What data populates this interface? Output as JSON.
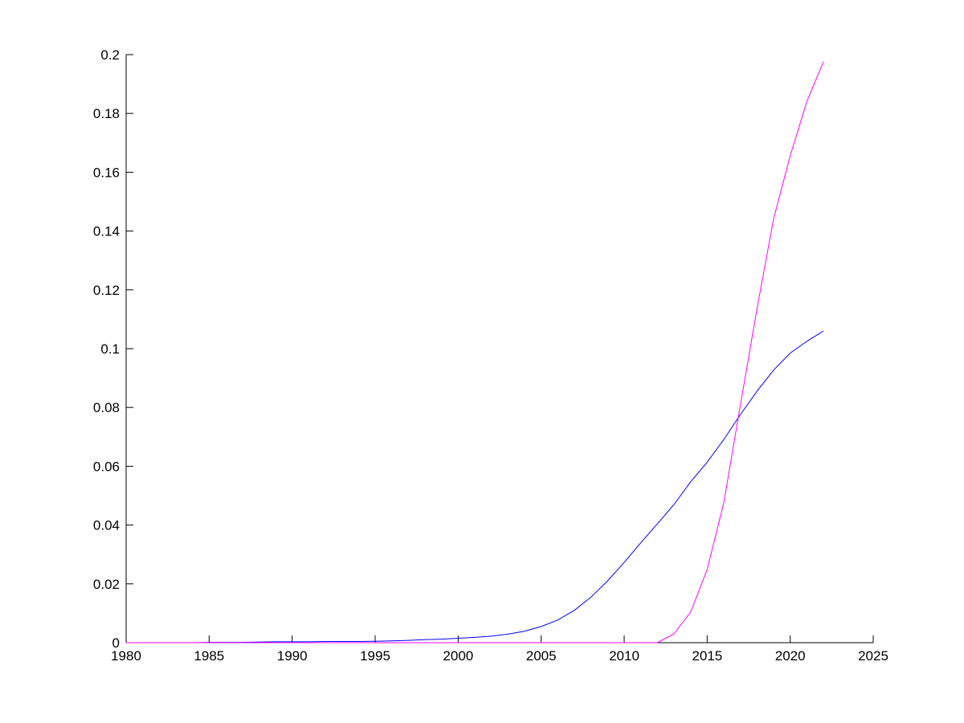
{
  "chart_data": {
    "type": "line",
    "title": "",
    "xlabel": "",
    "ylabel": "",
    "xlim": [
      1980,
      2025
    ],
    "ylim": [
      0,
      0.2
    ],
    "xticks": [
      "1980",
      "1985",
      "1990",
      "1995",
      "2000",
      "2005",
      "2010",
      "2015",
      "2020",
      "2025"
    ],
    "yticks": [
      "0",
      "0.02",
      "0.04",
      "0.06",
      "0.08",
      "0.1",
      "0.12",
      "0.14",
      "0.16",
      "0.18",
      "0.2"
    ],
    "grid": false,
    "legend": "none",
    "series": [
      {
        "color": "#0000ff",
        "x": [
          1980,
          1981,
          1982,
          1983,
          1984,
          1985,
          1986,
          1987,
          1988,
          1989,
          1990,
          1991,
          1992,
          1993,
          1994,
          1995,
          1996,
          1997,
          1998,
          1999,
          2000,
          2001,
          2002,
          2003,
          2004,
          2005,
          2006,
          2007,
          2008,
          2009,
          2010,
          2011,
          2012,
          2013,
          2014,
          2015,
          2016,
          2017,
          2018,
          2019,
          2020,
          2021,
          2022
        ],
        "y": [
          0,
          0,
          0,
          0,
          0,
          0.0001,
          0.0001,
          0.0001,
          0.0002,
          0.0003,
          0.0003,
          0.0003,
          0.0004,
          0.0004,
          0.0004,
          0.0005,
          0.0006,
          0.0008,
          0.001,
          0.0012,
          0.0015,
          0.0018,
          0.0022,
          0.0029,
          0.0039,
          0.0055,
          0.0077,
          0.011,
          0.0155,
          0.021,
          0.0273,
          0.034,
          0.0404,
          0.047,
          0.0547,
          0.0614,
          0.0691,
          0.0776,
          0.0855,
          0.0927,
          0.0985,
          0.1025,
          0.106
        ]
      },
      {
        "color": "#ff00ff",
        "x": [
          1980,
          2012,
          2013,
          2014,
          2015,
          2016,
          2017,
          2018,
          2019,
          2020,
          2021,
          2022
        ],
        "y": [
          0,
          0,
          0.003,
          0.0104,
          0.0249,
          0.0476,
          0.0809,
          0.1135,
          0.1442,
          0.1656,
          0.184,
          0.1976
        ]
      }
    ]
  }
}
